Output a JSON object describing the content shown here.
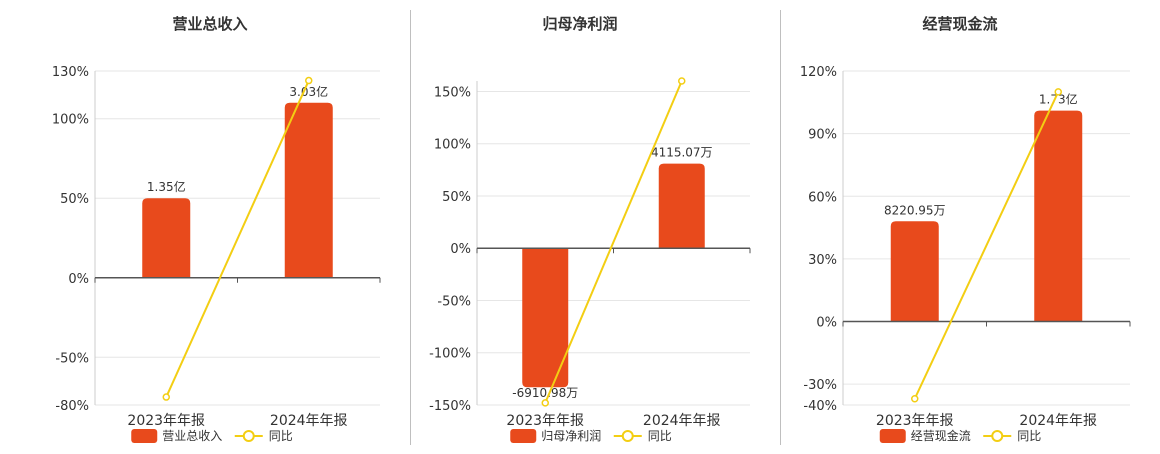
{
  "colors": {
    "bar": "#e84a1c",
    "line": "#f3ce13",
    "grid": "#e6e6e6",
    "axis": "#555555",
    "text": "#333333"
  },
  "chart_data": [
    {
      "type": "bar",
      "title": "营业总收入",
      "categories": [
        "2023年年报",
        "2024年年报"
      ],
      "series": [
        {
          "name": "营业总收入",
          "kind": "bar",
          "values": [
            1.35,
            3.03
          ],
          "value_labels": [
            "1.35亿",
            "3.03亿"
          ],
          "unit": "亿"
        },
        {
          "name": "同比",
          "kind": "line",
          "values": [
            -75,
            124
          ],
          "unit": "%"
        }
      ],
      "yticks": [
        "130%",
        "100%",
        "50%",
        "0%",
        "-50%",
        "-80%"
      ],
      "ylim": [
        -80,
        130
      ]
    },
    {
      "type": "bar",
      "title": "归母净利润",
      "categories": [
        "2023年年报",
        "2024年年报"
      ],
      "series": [
        {
          "name": "归母净利润",
          "kind": "bar",
          "values": [
            -6910.98,
            4115.07
          ],
          "value_labels": [
            "-6910.98万",
            "4115.07万"
          ],
          "unit": "万"
        },
        {
          "name": "同比",
          "kind": "line",
          "values": [
            -148,
            160
          ],
          "unit": "%"
        }
      ],
      "yticks": [
        "150%",
        "100%",
        "50%",
        "0%",
        "-50%",
        "-100%",
        "-150%"
      ],
      "ylim": [
        -150,
        160
      ]
    },
    {
      "type": "bar",
      "title": "经营现金流",
      "categories": [
        "2023年年报",
        "2024年年报"
      ],
      "series": [
        {
          "name": "经营现金流",
          "kind": "bar",
          "values": [
            8220.95,
            1.73
          ],
          "value_labels": [
            "8220.95万",
            "1.73亿"
          ],
          "unit": "万/亿"
        },
        {
          "name": "同比",
          "kind": "line",
          "values": [
            -37,
            110
          ],
          "unit": "%"
        }
      ],
      "yticks": [
        "120%",
        "90%",
        "60%",
        "30%",
        "0%",
        "-30%",
        "-40%"
      ],
      "ylim": [
        -40,
        120
      ]
    }
  ]
}
